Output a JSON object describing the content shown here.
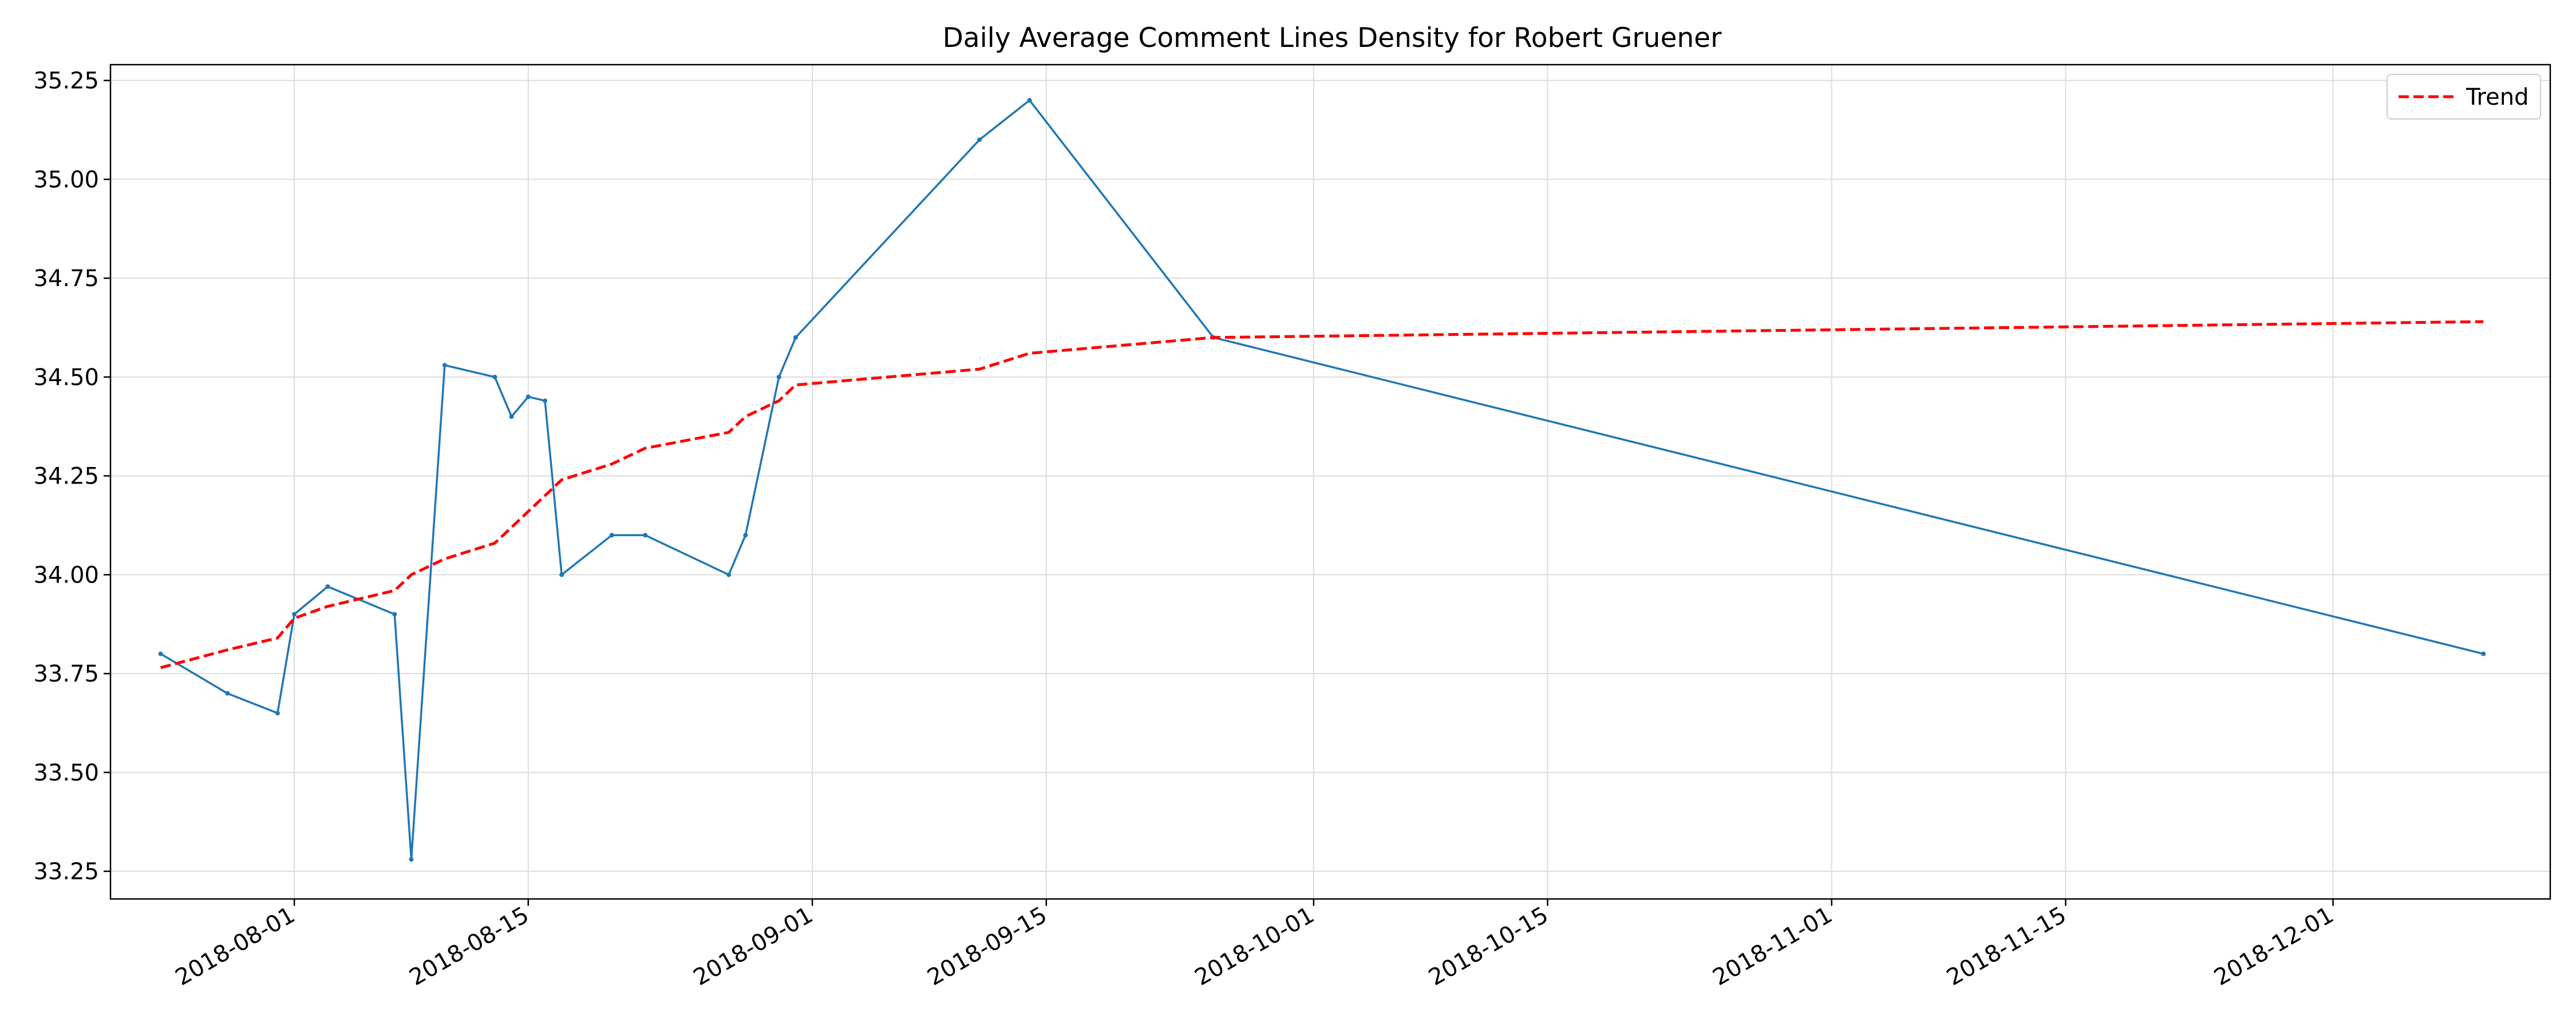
{
  "chart_data": {
    "type": "line",
    "title": "Daily Average Comment Lines Density for Robert Gruener",
    "xlabel": "",
    "ylabel": "",
    "x_type": "date",
    "xlim": [
      "2018-07-21",
      "2018-12-14"
    ],
    "ylim": [
      33.18,
      35.29
    ],
    "x_ticks": [
      "2018-08-01",
      "2018-08-15",
      "2018-09-01",
      "2018-09-15",
      "2018-10-01",
      "2018-10-15",
      "2018-11-01",
      "2018-11-15",
      "2018-12-01"
    ],
    "y_ticks": [
      33.25,
      33.5,
      33.75,
      34.0,
      34.25,
      34.5,
      34.75,
      35.0,
      35.25
    ],
    "y_tick_labels": [
      "33.25",
      "33.50",
      "33.75",
      "34.00",
      "34.25",
      "34.50",
      "34.75",
      "35.00",
      "35.25"
    ],
    "grid": true,
    "legend_position": "top-right",
    "series": [
      {
        "name": "",
        "color": "#1f77b4",
        "style": "solid",
        "markers": true,
        "x": [
          "2018-07-24",
          "2018-07-28",
          "2018-07-31",
          "2018-08-01",
          "2018-08-03",
          "2018-08-07",
          "2018-08-08",
          "2018-08-10",
          "2018-08-13",
          "2018-08-14",
          "2018-08-15",
          "2018-08-16",
          "2018-08-17",
          "2018-08-20",
          "2018-08-22",
          "2018-08-27",
          "2018-08-28",
          "2018-08-30",
          "2018-08-31",
          "2018-09-11",
          "2018-09-14",
          "2018-09-25",
          "2018-12-10"
        ],
        "y": [
          33.8,
          33.7,
          33.65,
          33.9,
          33.97,
          33.9,
          33.28,
          34.53,
          34.5,
          34.4,
          34.45,
          34.44,
          34.0,
          34.1,
          34.1,
          34.0,
          34.1,
          34.5,
          34.6,
          35.1,
          35.2,
          34.6,
          33.8
        ]
      },
      {
        "name": "Trend",
        "color": "#ff0000",
        "style": "dashed",
        "markers": false,
        "x": [
          "2018-07-24",
          "2018-07-28",
          "2018-07-31",
          "2018-08-01",
          "2018-08-03",
          "2018-08-07",
          "2018-08-08",
          "2018-08-10",
          "2018-08-13",
          "2018-08-14",
          "2018-08-15",
          "2018-08-16",
          "2018-08-17",
          "2018-08-20",
          "2018-08-22",
          "2018-08-27",
          "2018-08-28",
          "2018-08-30",
          "2018-08-31",
          "2018-09-11",
          "2018-09-14",
          "2018-09-25",
          "2018-12-10"
        ],
        "y": [
          33.765,
          33.81,
          33.84,
          33.89,
          33.92,
          33.96,
          34.0,
          34.04,
          34.08,
          34.12,
          34.16,
          34.2,
          34.24,
          34.28,
          34.32,
          34.36,
          34.4,
          34.44,
          34.48,
          34.52,
          34.56,
          34.6,
          34.64
        ]
      }
    ]
  }
}
